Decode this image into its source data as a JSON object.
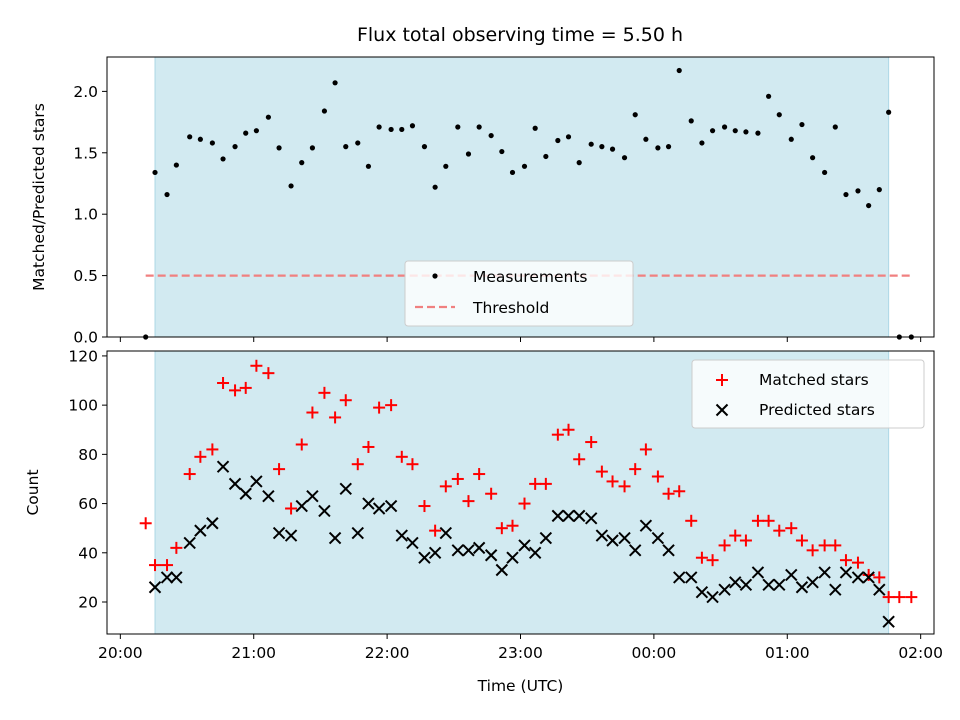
{
  "figure": {
    "title": "Flux total observing time = 5.50 h",
    "xlabel": "Time (UTC)",
    "xticks": [
      "20:00",
      "21:00",
      "22:00",
      "23:00",
      "00:00",
      "01:00",
      "02:00"
    ]
  },
  "colors": {
    "span": "#add8e6",
    "measurement": "#000000",
    "threshold": "#f08080",
    "matched": "#ff0000",
    "predicted": "#000000"
  },
  "chart_data": [
    {
      "type": "scatter",
      "ylabel": "Matched/Predicted stars",
      "xlim": [
        -0.1,
        6.1
      ],
      "ylim": [
        0,
        2.28
      ],
      "yticks": [
        "0.0",
        "0.5",
        "1.0",
        "1.5",
        "2.0"
      ],
      "observing_span": [
        0.26,
        5.76
      ],
      "legend": {
        "placement": "lower center",
        "entries": [
          "Measurements",
          "Threshold"
        ]
      },
      "threshold": {
        "name": "Threshold",
        "y": 0.5,
        "x_range": [
          0.19,
          5.93
        ]
      },
      "series": [
        {
          "name": "Measurements",
          "x": [
            0.19,
            0.26,
            0.35,
            0.42,
            0.52,
            0.6,
            0.69,
            0.77,
            0.86,
            0.94,
            1.02,
            1.11,
            1.19,
            1.28,
            1.36,
            1.44,
            1.53,
            1.61,
            1.69,
            1.78,
            1.86,
            1.94,
            2.03,
            2.11,
            2.19,
            2.28,
            2.36,
            2.44,
            2.53,
            2.61,
            2.69,
            2.78,
            2.86,
            2.94,
            3.03,
            3.11,
            3.19,
            3.28,
            3.36,
            3.44,
            3.53,
            3.61,
            3.69,
            3.78,
            3.86,
            3.94,
            4.03,
            4.11,
            4.19,
            4.28,
            4.36,
            4.44,
            4.53,
            4.61,
            4.69,
            4.78,
            4.86,
            4.94,
            5.03,
            5.11,
            5.19,
            5.28,
            5.36,
            5.44,
            5.53,
            5.61,
            5.69,
            5.76,
            5.84,
            5.93
          ],
          "y": [
            0.0,
            1.34,
            1.16,
            1.4,
            1.63,
            1.61,
            1.58,
            1.45,
            1.55,
            1.66,
            1.68,
            1.79,
            1.54,
            1.23,
            1.42,
            1.54,
            1.84,
            2.07,
            1.55,
            1.58,
            1.39,
            1.71,
            1.69,
            1.69,
            1.72,
            1.55,
            1.22,
            1.39,
            1.71,
            1.49,
            1.71,
            1.64,
            1.51,
            1.34,
            1.39,
            1.7,
            1.47,
            1.6,
            1.63,
            1.42,
            1.57,
            1.55,
            1.53,
            1.46,
            1.81,
            1.61,
            1.54,
            1.55,
            2.17,
            1.76,
            1.58,
            1.68,
            1.71,
            1.68,
            1.67,
            1.66,
            1.96,
            1.81,
            1.61,
            1.73,
            1.46,
            1.34,
            1.71,
            1.16,
            1.19,
            1.07,
            1.2,
            1.83,
            0.0,
            0.0
          ]
        }
      ]
    },
    {
      "type": "scatter",
      "ylabel": "Count",
      "xlim": [
        -0.1,
        6.1
      ],
      "ylim": [
        7,
        122
      ],
      "yticks": [
        "20",
        "40",
        "60",
        "80",
        "100",
        "120"
      ],
      "observing_span": [
        0.26,
        5.76
      ],
      "legend": {
        "placement": "upper right",
        "entries": [
          "Matched stars",
          "Predicted stars"
        ]
      },
      "series": [
        {
          "name": "Matched stars",
          "x": [
            0.19,
            0.26,
            0.35,
            0.42,
            0.52,
            0.6,
            0.69,
            0.77,
            0.86,
            0.94,
            1.02,
            1.11,
            1.19,
            1.28,
            1.36,
            1.44,
            1.53,
            1.61,
            1.69,
            1.78,
            1.86,
            1.94,
            2.03,
            2.11,
            2.19,
            2.28,
            2.36,
            2.44,
            2.53,
            2.61,
            2.69,
            2.78,
            2.86,
            2.94,
            3.03,
            3.11,
            3.19,
            3.28,
            3.36,
            3.44,
            3.53,
            3.61,
            3.69,
            3.78,
            3.86,
            3.94,
            4.03,
            4.11,
            4.19,
            4.28,
            4.36,
            4.44,
            4.53,
            4.61,
            4.69,
            4.78,
            4.86,
            4.94,
            5.03,
            5.11,
            5.19,
            5.28,
            5.36,
            5.44,
            5.53,
            5.61,
            5.69,
            5.76,
            5.84,
            5.93
          ],
          "y": [
            52,
            35,
            35,
            42,
            72,
            79,
            82,
            109,
            106,
            107,
            116,
            113,
            74,
            58,
            84,
            97,
            105,
            95,
            102,
            76,
            83,
            99,
            100,
            79,
            76,
            59,
            49,
            67,
            70,
            61,
            72,
            64,
            50,
            51,
            60,
            68,
            68,
            88,
            90,
            78,
            85,
            73,
            69,
            67,
            74,
            82,
            71,
            64,
            65,
            53,
            38,
            37,
            43,
            47,
            45,
            53,
            53,
            49,
            50,
            45,
            41,
            43,
            43,
            37,
            36,
            31,
            30,
            22,
            22,
            22
          ]
        },
        {
          "name": "Predicted stars",
          "x": [
            0.26,
            0.35,
            0.42,
            0.52,
            0.6,
            0.69,
            0.77,
            0.86,
            0.94,
            1.02,
            1.11,
            1.19,
            1.28,
            1.36,
            1.44,
            1.53,
            1.61,
            1.69,
            1.78,
            1.86,
            1.94,
            2.03,
            2.11,
            2.19,
            2.28,
            2.36,
            2.44,
            2.53,
            2.61,
            2.69,
            2.78,
            2.86,
            2.94,
            3.03,
            3.11,
            3.19,
            3.28,
            3.36,
            3.44,
            3.53,
            3.61,
            3.69,
            3.78,
            3.86,
            3.94,
            4.03,
            4.11,
            4.19,
            4.28,
            4.36,
            4.44,
            4.53,
            4.61,
            4.69,
            4.78,
            4.86,
            4.94,
            5.03,
            5.11,
            5.19,
            5.28,
            5.36,
            5.44,
            5.53,
            5.61,
            5.69,
            5.76
          ],
          "y": [
            26,
            30,
            30,
            44,
            49,
            52,
            75,
            68,
            64,
            69,
            63,
            48,
            47,
            59,
            63,
            57,
            46,
            66,
            48,
            60,
            58,
            59,
            47,
            44,
            38,
            40,
            48,
            41,
            41,
            42,
            39,
            33,
            38,
            43,
            40,
            46,
            55,
            55,
            55,
            54,
            47,
            45,
            46,
            41,
            51,
            46,
            41,
            30,
            30,
            24,
            22,
            25,
            28,
            27,
            32,
            27,
            27,
            31,
            26,
            28,
            32,
            25,
            32,
            30,
            30,
            25,
            12
          ]
        }
      ]
    }
  ]
}
